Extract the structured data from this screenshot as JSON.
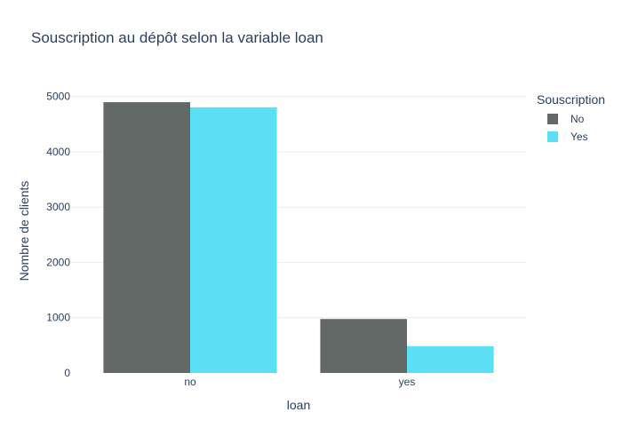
{
  "chart_data": {
    "type": "bar",
    "title": "Souscription au dépôt selon la variable loan",
    "xlabel": "loan",
    "ylabel": "Nombre de clients",
    "categories": [
      "no",
      "yes"
    ],
    "series": [
      {
        "name": "No",
        "values": [
          4897,
          976
        ],
        "color": "#636966"
      },
      {
        "name": "Yes",
        "values": [
          4805,
          484
        ],
        "color": "#5bdff5"
      }
    ],
    "ylim": [
      0,
      5300
    ],
    "yticks": [
      0,
      1000,
      2000,
      3000,
      4000,
      5000
    ],
    "grid": true,
    "legend": {
      "title": "Souscription",
      "placement": "right"
    }
  }
}
